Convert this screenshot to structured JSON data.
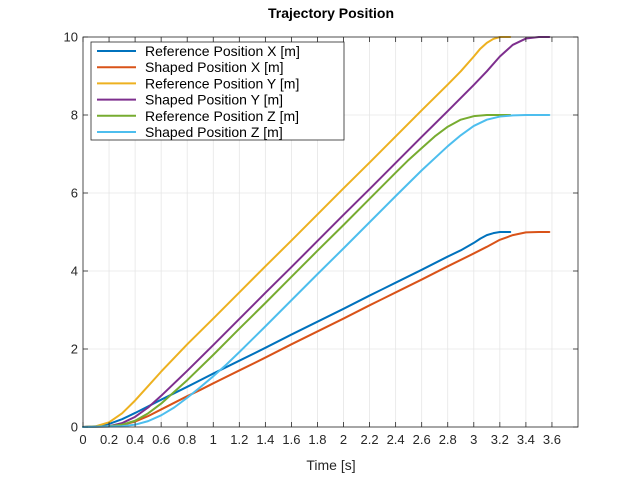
{
  "chart_data": {
    "type": "line",
    "title": "Trajectory Position",
    "xlabel": "Time [s]",
    "ylabel": "",
    "xlim": [
      0,
      3.8
    ],
    "ylim": [
      0,
      10
    ],
    "xticks": [
      "0",
      "0.2",
      "0.4",
      "0.6",
      "0.8",
      "1",
      "1.2",
      "1.4",
      "1.6",
      "1.8",
      "2",
      "2.2",
      "2.4",
      "2.6",
      "2.8",
      "3",
      "3.2",
      "3.4",
      "3.6"
    ],
    "yticks": [
      "0",
      "2",
      "4",
      "6",
      "8",
      "10"
    ],
    "grid": true,
    "legend_position": "top-left",
    "series": [
      {
        "name": "Reference Position X [m]",
        "color": "#0072BD",
        "x": [
          0,
          0.1,
          0.2,
          0.3,
          0.4,
          0.5,
          0.6,
          0.8,
          1.0,
          1.2,
          1.4,
          1.6,
          1.8,
          2.0,
          2.2,
          2.4,
          2.6,
          2.8,
          2.9,
          3.0,
          3.05,
          3.1,
          3.15,
          3.2,
          3.28
        ],
        "y": [
          0,
          0.015,
          0.08,
          0.2,
          0.36,
          0.53,
          0.7,
          1.03,
          1.37,
          1.7,
          2.03,
          2.37,
          2.7,
          3.03,
          3.37,
          3.7,
          4.03,
          4.37,
          4.53,
          4.72,
          4.83,
          4.92,
          4.97,
          5.0,
          5.0
        ]
      },
      {
        "name": "Shaped Position X [m]",
        "color": "#D95319",
        "x": [
          0,
          0.2,
          0.3,
          0.4,
          0.5,
          0.6,
          0.7,
          0.8,
          0.9,
          1.0,
          1.2,
          1.4,
          1.6,
          1.8,
          2.0,
          2.2,
          2.4,
          2.6,
          2.8,
          3.0,
          3.1,
          3.2,
          3.3,
          3.4,
          3.5,
          3.58
        ],
        "y": [
          0,
          0.01,
          0.05,
          0.14,
          0.28,
          0.45,
          0.62,
          0.79,
          0.95,
          1.12,
          1.45,
          1.78,
          2.12,
          2.45,
          2.78,
          3.12,
          3.45,
          3.78,
          4.12,
          4.45,
          4.62,
          4.8,
          4.92,
          4.99,
          5.0,
          5.0
        ]
      },
      {
        "name": "Reference Position Y [m]",
        "color": "#EDB120",
        "x": [
          0,
          0.1,
          0.2,
          0.3,
          0.4,
          0.5,
          0.6,
          0.8,
          1.0,
          1.2,
          1.4,
          1.6,
          1.8,
          2.0,
          2.2,
          2.4,
          2.6,
          2.8,
          2.9,
          3.0,
          3.05,
          3.1,
          3.15,
          3.2,
          3.28
        ],
        "y": [
          0,
          0.02,
          0.12,
          0.35,
          0.68,
          1.05,
          1.42,
          2.12,
          2.78,
          3.45,
          4.12,
          4.78,
          5.45,
          6.12,
          6.78,
          7.45,
          8.12,
          8.78,
          9.12,
          9.5,
          9.7,
          9.85,
          9.95,
          10.0,
          10.0
        ]
      },
      {
        "name": "Shaped Position Y [m]",
        "color": "#7E2F8E",
        "x": [
          0,
          0.2,
          0.3,
          0.4,
          0.5,
          0.6,
          0.7,
          0.8,
          0.9,
          1.0,
          1.2,
          1.4,
          1.6,
          1.8,
          2.0,
          2.2,
          2.4,
          2.6,
          2.8,
          3.0,
          3.1,
          3.2,
          3.3,
          3.4,
          3.5,
          3.58
        ],
        "y": [
          0,
          0.02,
          0.1,
          0.26,
          0.5,
          0.8,
          1.12,
          1.44,
          1.77,
          2.1,
          2.77,
          3.44,
          4.1,
          4.77,
          5.44,
          6.1,
          6.77,
          7.44,
          8.1,
          8.77,
          9.12,
          9.5,
          9.8,
          9.96,
          10.0,
          10.0
        ]
      },
      {
        "name": "Reference Position Z [m]",
        "color": "#77AC30",
        "x": [
          0,
          0.2,
          0.3,
          0.4,
          0.5,
          0.6,
          0.7,
          0.8,
          1.0,
          1.2,
          1.4,
          1.6,
          1.8,
          2.0,
          2.2,
          2.4,
          2.5,
          2.6,
          2.7,
          2.8,
          2.9,
          3.0,
          3.1,
          3.2,
          3.28
        ],
        "y": [
          0,
          0.02,
          0.06,
          0.16,
          0.35,
          0.6,
          0.9,
          1.2,
          1.85,
          2.52,
          3.18,
          3.85,
          4.52,
          5.18,
          5.85,
          6.52,
          6.85,
          7.15,
          7.45,
          7.7,
          7.88,
          7.97,
          8.0,
          8.0,
          8.0
        ]
      },
      {
        "name": "Shaped Position Z [m]",
        "color": "#4DBEEE",
        "x": [
          0,
          0.3,
          0.4,
          0.5,
          0.6,
          0.7,
          0.8,
          0.9,
          1.0,
          1.1,
          1.2,
          1.4,
          1.6,
          1.8,
          2.0,
          2.2,
          2.4,
          2.6,
          2.8,
          2.9,
          3.0,
          3.1,
          3.2,
          3.3,
          3.4,
          3.58
        ],
        "y": [
          0,
          0.02,
          0.06,
          0.15,
          0.3,
          0.5,
          0.75,
          1.02,
          1.3,
          1.6,
          1.92,
          2.58,
          3.25,
          3.92,
          4.58,
          5.25,
          5.92,
          6.58,
          7.2,
          7.48,
          7.72,
          7.88,
          7.96,
          7.99,
          8.0,
          8.0
        ]
      }
    ]
  }
}
